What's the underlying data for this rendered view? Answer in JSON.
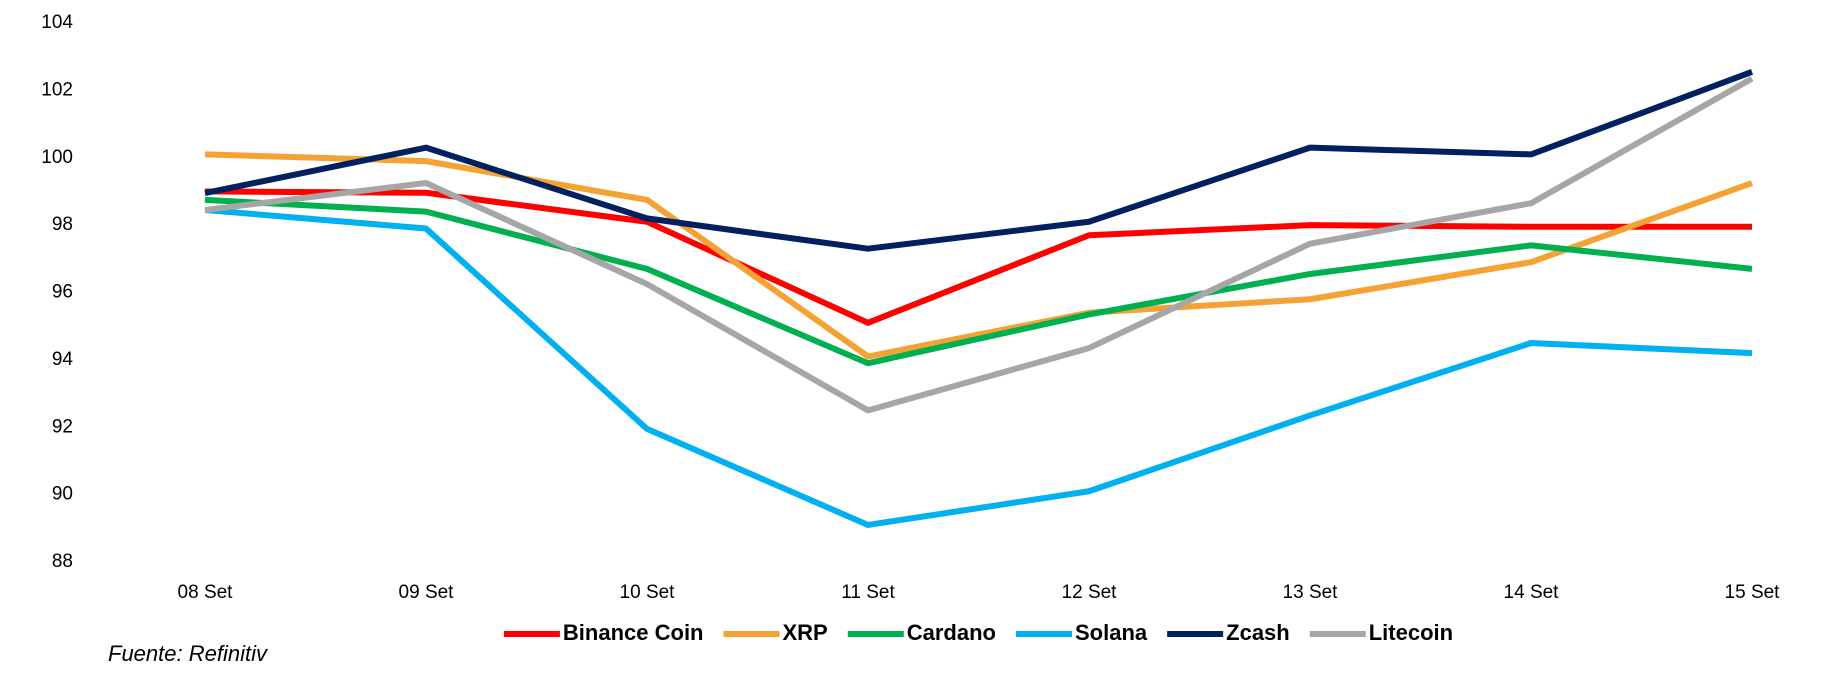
{
  "chart_data": {
    "type": "line",
    "x": [
      "08 Set",
      "09 Set",
      "10 Set",
      "11 Set",
      "12 Set",
      "13 Set",
      "14 Set",
      "15 Set"
    ],
    "series": [
      {
        "name": "Binance Coin",
        "color": "#ff0000",
        "values": [
          99.0,
          98.96,
          98.1,
          95.1,
          97.7,
          98.0,
          97.95,
          97.95
        ]
      },
      {
        "name": "XRP",
        "color": "#f4a233",
        "values": [
          100.1,
          99.9,
          98.75,
          94.1,
          95.4,
          95.8,
          96.9,
          99.25
        ]
      },
      {
        "name": "Cardano",
        "color": "#00b050",
        "values": [
          98.75,
          98.4,
          96.7,
          93.9,
          95.35,
          96.55,
          97.4,
          96.7
        ]
      },
      {
        "name": "Solana",
        "color": "#00b0f0",
        "values": [
          98.45,
          97.9,
          91.95,
          89.1,
          90.1,
          92.35,
          94.5,
          94.2
        ]
      },
      {
        "name": "Zcash",
        "color": "#002060",
        "values": [
          98.95,
          100.3,
          98.2,
          97.3,
          98.1,
          100.3,
          100.1,
          102.55
        ]
      },
      {
        "name": "Litecoin",
        "color": "#a6a6a6",
        "values": [
          98.45,
          99.25,
          96.25,
          92.5,
          94.35,
          97.45,
          98.65,
          102.35
        ]
      }
    ],
    "ylim": [
      88,
      104
    ],
    "yticks": [
      88,
      90,
      92,
      94,
      96,
      98,
      100,
      102,
      104
    ],
    "grid": false,
    "legend": "bottom",
    "source": "Fuente: Refinitiv"
  }
}
